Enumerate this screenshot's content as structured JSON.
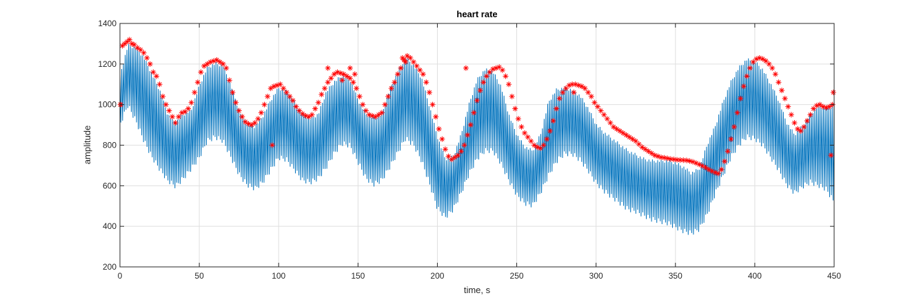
{
  "chart_data": {
    "type": "line",
    "title": "heart rate",
    "xlabel": "time, s",
    "ylabel": "amplitude",
    "xlim": [
      0,
      450
    ],
    "ylim": [
      200,
      1400
    ],
    "xticks": [
      0,
      50,
      100,
      150,
      200,
      250,
      300,
      350,
      400,
      450
    ],
    "yticks": [
      200,
      400,
      600,
      800,
      1000,
      1200,
      1400
    ],
    "grid": true,
    "colors": {
      "signal": "#0072BD",
      "peaks": "#FF0000",
      "grid": "#DFDFDF",
      "axis": "#262626"
    },
    "series": [
      {
        "kind": "signal",
        "x": [
          0,
          5,
          10,
          15,
          20,
          25,
          30,
          35,
          40,
          45,
          50,
          55,
          60,
          65,
          70,
          75,
          80,
          85,
          90,
          95,
          100,
          105,
          110,
          115,
          120,
          125,
          130,
          135,
          140,
          145,
          150,
          155,
          160,
          165,
          170,
          175,
          180,
          185,
          190,
          195,
          200,
          205,
          210,
          215,
          220,
          225,
          230,
          235,
          240,
          245,
          250,
          255,
          260,
          265,
          270,
          275,
          280,
          285,
          290,
          295,
          300,
          305,
          310,
          315,
          320,
          325,
          330,
          335,
          340,
          345,
          350,
          355,
          360,
          365,
          370,
          375,
          380,
          385,
          390,
          395,
          400,
          405,
          410,
          415,
          420,
          425,
          430,
          435,
          440,
          445,
          450
        ],
        "peak": [
          1150,
          1300,
          1290,
          1240,
          1160,
          1080,
          960,
          920,
          960,
          980,
          1100,
          1190,
          1210,
          1200,
          1100,
          980,
          910,
          900,
          950,
          1030,
          1090,
          1070,
          1020,
          960,
          940,
          960,
          1070,
          1120,
          1150,
          1130,
          1030,
          960,
          940,
          960,
          1080,
          1170,
          1240,
          1200,
          1140,
          1000,
          850,
          740,
          750,
          860,
          1010,
          1130,
          1180,
          1170,
          1100,
          960,
          860,
          800,
          780,
          860,
          1020,
          1080,
          1090,
          1080,
          1050,
          990,
          910,
          870,
          840,
          810,
          780,
          760,
          740,
          730,
          730,
          730,
          720,
          700,
          670,
          690,
          810,
          900,
          1020,
          1120,
          1190,
          1230,
          1220,
          1180,
          1110,
          1030,
          920,
          860,
          900,
          960,
          1000,
          990,
          1000
        ],
        "trough": [
          870,
          960,
          880,
          780,
          700,
          640,
          590,
          560,
          600,
          650,
          700,
          780,
          800,
          780,
          700,
          620,
          570,
          550,
          580,
          640,
          700,
          690,
          640,
          590,
          580,
          600,
          650,
          720,
          770,
          760,
          680,
          600,
          570,
          590,
          650,
          720,
          790,
          760,
          680,
          570,
          450,
          410,
          450,
          530,
          620,
          690,
          730,
          730,
          670,
          590,
          520,
          480,
          470,
          530,
          610,
          680,
          720,
          720,
          690,
          640,
          580,
          540,
          510,
          480,
          450,
          440,
          420,
          400,
          390,
          380,
          360,
          340,
          330,
          350,
          420,
          520,
          610,
          700,
          760,
          800,
          790,
          760,
          700,
          640,
          570,
          530,
          560,
          580,
          560,
          540,
          470
        ]
      },
      {
        "kind": "peaks",
        "marker": "*",
        "x": [
          0.5,
          1.5,
          3,
          4.5,
          6,
          7.5,
          9,
          11,
          13,
          15,
          17,
          19,
          21,
          23,
          25,
          27,
          29,
          31,
          33,
          35,
          37,
          39,
          41,
          43,
          45,
          47,
          49,
          51,
          53,
          55,
          57,
          59,
          61,
          63,
          65,
          67,
          69,
          71,
          73,
          75,
          77,
          79,
          81,
          83,
          85,
          87,
          89,
          91,
          93,
          95,
          97,
          99,
          101,
          103,
          105,
          107,
          109,
          111,
          113,
          115,
          117,
          119,
          121,
          123,
          125,
          127,
          129,
          131,
          133,
          135,
          137,
          139,
          141,
          143,
          145,
          147,
          149,
          151,
          153,
          155,
          157,
          159,
          161,
          163,
          165,
          167,
          169,
          171,
          173,
          175,
          177,
          179,
          181,
          183,
          185,
          187,
          189,
          191,
          193,
          195,
          197,
          199,
          201,
          203,
          205,
          207,
          209,
          211,
          213,
          215,
          217,
          219,
          221,
          223,
          225,
          227,
          229,
          231,
          233,
          235,
          237,
          239,
          241,
          243,
          245,
          247,
          249,
          251,
          253,
          255,
          257,
          259,
          261,
          263,
          265,
          267,
          269,
          271,
          273,
          275,
          277,
          279,
          281,
          283,
          285,
          287,
          289,
          291,
          293,
          295,
          297,
          299,
          301,
          303,
          305,
          307,
          309,
          311,
          313,
          315,
          317,
          319,
          321,
          323,
          325,
          327,
          329,
          331,
          333,
          335,
          337,
          339,
          341,
          343,
          345,
          347,
          349,
          351,
          353,
          355,
          357,
          359,
          361,
          363,
          365,
          367,
          369,
          371,
          373,
          375,
          377,
          379,
          381,
          383,
          385,
          387,
          389,
          391,
          393,
          395,
          397,
          399,
          401,
          403,
          405,
          407,
          409,
          411,
          413,
          415,
          417,
          419,
          421,
          423,
          425,
          427,
          429,
          431,
          433,
          435,
          437,
          439,
          441,
          443,
          445,
          447,
          449,
          0.3,
          96,
          131,
          140,
          145,
          148,
          178,
          180,
          218,
          286,
          448,
          449.5
        ],
        "y": [
          1000,
          1290,
          1300,
          1310,
          1320,
          1300,
          1295,
          1280,
          1270,
          1255,
          1230,
          1200,
          1160,
          1140,
          1100,
          1040,
          1000,
          970,
          940,
          910,
          940,
          960,
          965,
          980,
          1010,
          1060,
          1110,
          1160,
          1190,
          1200,
          1210,
          1215,
          1220,
          1210,
          1200,
          1180,
          1120,
          1060,
          1010,
          970,
          940,
          915,
          905,
          900,
          910,
          930,
          960,
          1000,
          1040,
          1080,
          1090,
          1095,
          1100,
          1080,
          1060,
          1040,
          1020,
          990,
          970,
          955,
          945,
          940,
          950,
          980,
          1010,
          1050,
          1080,
          1110,
          1130,
          1150,
          1160,
          1155,
          1150,
          1140,
          1130,
          1110,
          1080,
          1040,
          1000,
          970,
          950,
          945,
          940,
          950,
          960,
          1000,
          1040,
          1080,
          1110,
          1150,
          1180,
          1220,
          1240,
          1230,
          1210,
          1190,
          1170,
          1150,
          1110,
          1060,
          1000,
          940,
          880,
          830,
          780,
          745,
          730,
          740,
          750,
          770,
          800,
          850,
          900,
          960,
          1020,
          1070,
          1110,
          1140,
          1160,
          1175,
          1180,
          1185,
          1170,
          1140,
          1100,
          1040,
          980,
          930,
          890,
          860,
          840,
          820,
          800,
          790,
          785,
          800,
          830,
          870,
          920,
          980,
          1030,
          1060,
          1080,
          1095,
          1100,
          1100,
          1095,
          1090,
          1080,
          1060,
          1040,
          1010,
          990,
          970,
          950,
          930,
          910,
          890,
          880,
          870,
          860,
          850,
          840,
          830,
          820,
          805,
          790,
          780,
          770,
          760,
          750,
          745,
          740,
          738,
          735,
          732,
          730,
          728,
          727,
          726,
          725,
          722,
          718,
          712,
          705,
          698,
          690,
          680,
          672,
          665,
          660,
          680,
          720,
          770,
          830,
          890,
          960,
          1030,
          1090,
          1140,
          1180,
          1210,
          1225,
          1230,
          1225,
          1215,
          1200,
          1180,
          1150,
          1110,
          1070,
          1030,
          990,
          950,
          910,
          880,
          870,
          890,
          920,
          950,
          980,
          995,
          1000,
          990,
          985,
          990,
          1000,
          1000,
          800,
          1180,
          1120,
          1180,
          1150,
          1230,
          1210,
          1180,
          1060,
          750,
          1060
        ]
      }
    ]
  }
}
